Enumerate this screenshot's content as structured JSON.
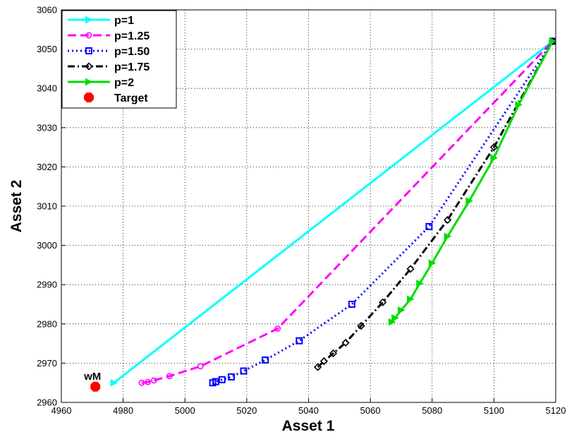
{
  "chart_data": {
    "type": "line",
    "title": "",
    "xlabel": "Asset 1",
    "ylabel": "Asset 2",
    "xlim": [
      4960,
      5120
    ],
    "ylim": [
      2960,
      3060
    ],
    "xticks": [
      4960,
      4980,
      5000,
      5020,
      5040,
      5060,
      5080,
      5100,
      5120
    ],
    "yticks": [
      2960,
      2970,
      2980,
      2990,
      3000,
      3010,
      3020,
      3030,
      3040,
      3050,
      3060
    ],
    "grid": true,
    "legend_position": "top-left",
    "series": [
      {
        "name": "p=1",
        "color": "#00FFFF",
        "line_style": "solid",
        "marker": "triangle-right",
        "x": [
          4977,
          5119
        ],
        "y": [
          2965,
          3052
        ]
      },
      {
        "name": "p=1.25",
        "color": "#FF00FF",
        "line_style": "dashed",
        "marker": "circle",
        "x": [
          4986,
          4988,
          4990,
          4995,
          5005,
          5030,
          5119
        ],
        "y": [
          2965,
          2965.2,
          2965.6,
          2966.7,
          2969.2,
          2978.8,
          3052
        ]
      },
      {
        "name": "p=1.50",
        "color": "#0000FF",
        "line_style": "dotted",
        "marker": "square",
        "x": [
          5009,
          5010,
          5012,
          5015,
          5019,
          5026,
          5037,
          5054,
          5079,
          5119
        ],
        "y": [
          2965,
          2965.3,
          2965.8,
          2966.5,
          2968,
          2970.8,
          2975.7,
          2985,
          3004.8,
          3052
        ]
      },
      {
        "name": "p=1.75",
        "color": "#000000",
        "line_style": "dash-dot",
        "marker": "diamond",
        "x": [
          5043,
          5045,
          5048,
          5052,
          5057,
          5064,
          5073,
          5085,
          5100,
          5119
        ],
        "y": [
          2969,
          2970.5,
          2972.5,
          2975.2,
          2979.5,
          2985.5,
          2994,
          3006.5,
          3025,
          3052
        ]
      },
      {
        "name": "p=2",
        "color": "#00DD00",
        "line_style": "solid",
        "marker": "triangle-right",
        "x": [
          5067,
          5068,
          5070,
          5073,
          5076,
          5080,
          5085,
          5092,
          5100,
          5108,
          5119
        ],
        "y": [
          2980.5,
          2981.5,
          2983.5,
          2986.3,
          2990.3,
          2995.5,
          3002.3,
          3011.3,
          3022.3,
          3035.8,
          3052
        ]
      }
    ],
    "target": {
      "name": "Target",
      "label": "wM",
      "color": "#FF0000",
      "marker": "octagon",
      "x": 4971,
      "y": 2964
    }
  }
}
